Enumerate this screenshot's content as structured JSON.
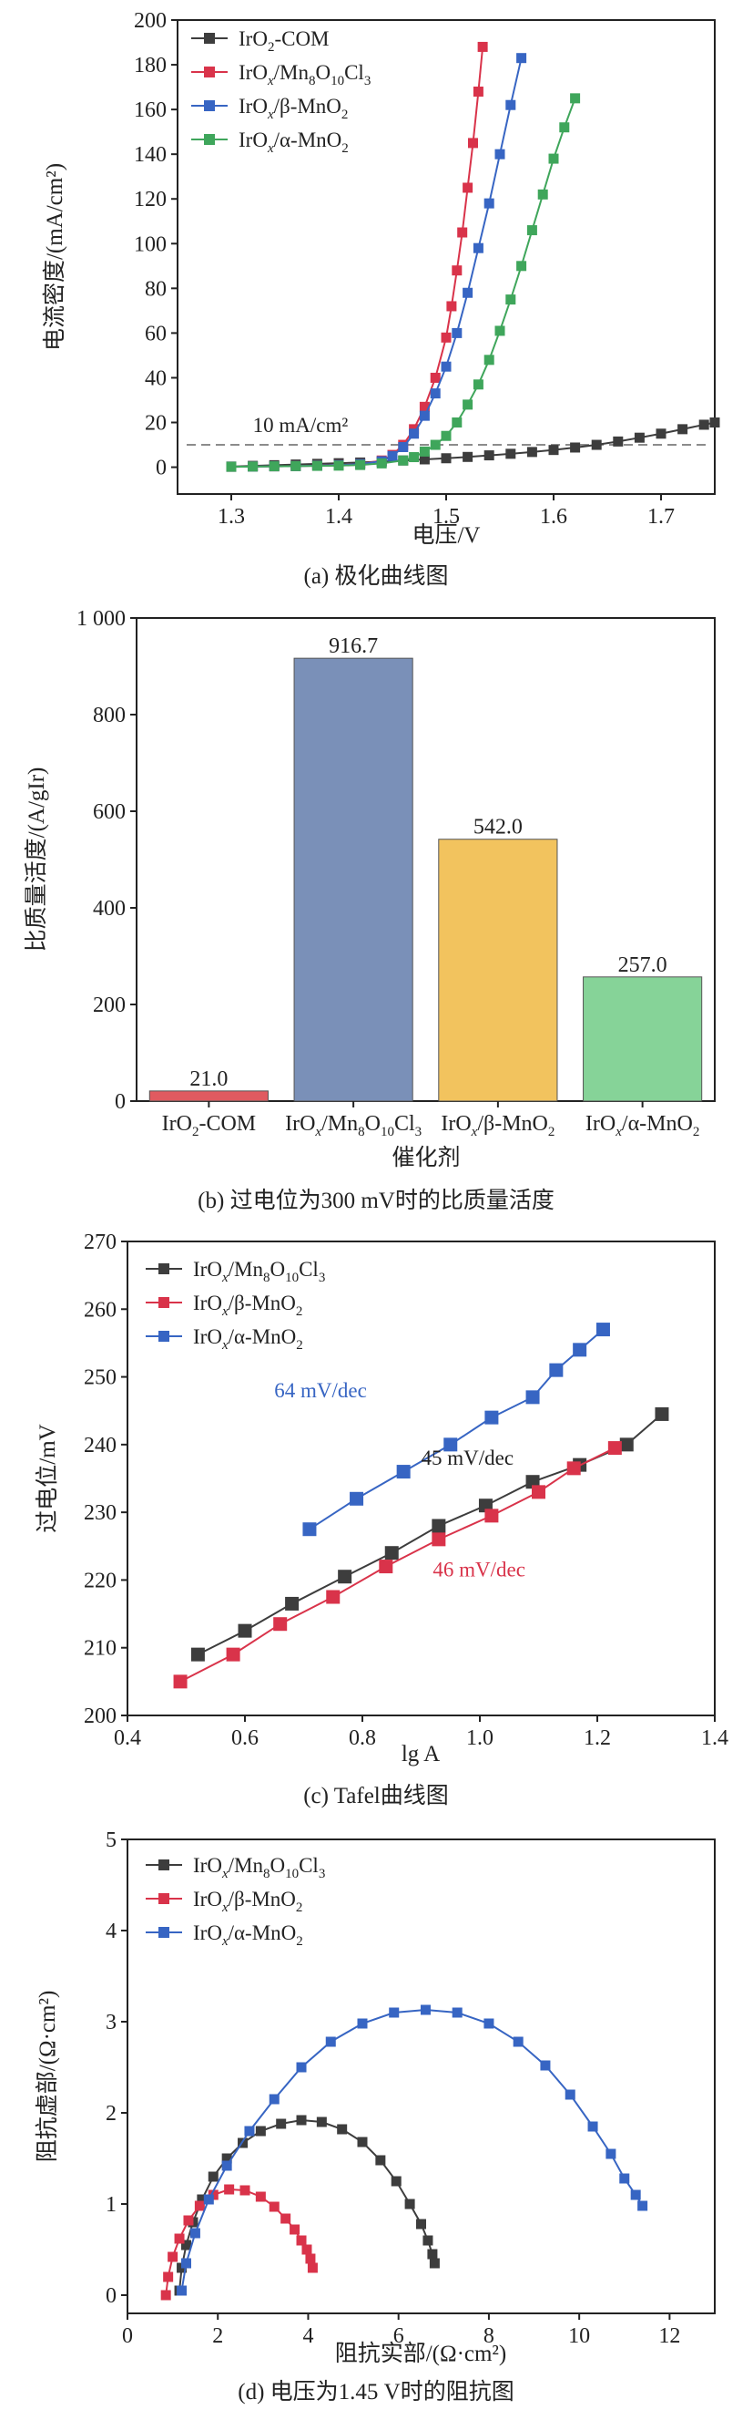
{
  "chart_data": [
    {
      "type": "line",
      "caption": "(a) 极化曲线图",
      "xlabel": "电压/V",
      "ylabel": "电流密度/(mA/cm²)",
      "xlim": [
        1.25,
        1.75
      ],
      "ylim": [
        -12,
        200
      ],
      "xticks": [
        "1.3",
        "1.4",
        "1.5",
        "1.6",
        "1.7"
      ],
      "yticks": [
        "0",
        "20",
        "40",
        "60",
        "80",
        "100",
        "120",
        "140",
        "160",
        "180",
        "200"
      ],
      "legend_position": "top-left",
      "reference_line": {
        "y": 10,
        "label": "10 mA/cm²"
      },
      "series": [
        {
          "name": "IrO₂-COM",
          "color": "#3d3d3d",
          "x": [
            1.3,
            1.32,
            1.34,
            1.36,
            1.38,
            1.4,
            1.42,
            1.44,
            1.46,
            1.48,
            1.5,
            1.52,
            1.54,
            1.56,
            1.58,
            1.6,
            1.62,
            1.64,
            1.66,
            1.68,
            1.7,
            1.72,
            1.74,
            1.75
          ],
          "y": [
            0.3,
            0.6,
            0.9,
            1.2,
            1.5,
            1.8,
            2.1,
            2.5,
            3,
            3.5,
            4,
            4.6,
            5.3,
            6,
            6.8,
            7.7,
            8.8,
            10,
            11.5,
            13.2,
            15,
            17,
            19,
            20
          ]
        },
        {
          "name": "IrOx/Mn8O10Cl3",
          "color": "#d9334a",
          "x": [
            1.3,
            1.32,
            1.34,
            1.36,
            1.38,
            1.4,
            1.42,
            1.44,
            1.45,
            1.46,
            1.47,
            1.48,
            1.49,
            1.5,
            1.505,
            1.51,
            1.515,
            1.52,
            1.525,
            1.53,
            1.534
          ],
          "y": [
            0.2,
            0.3,
            0.4,
            0.5,
            0.7,
            0.9,
            1.4,
            3,
            5.5,
            10,
            17,
            27,
            40,
            58,
            72,
            88,
            105,
            125,
            145,
            168,
            188
          ]
        },
        {
          "name": "IrOx/β-MnO2",
          "color": "#3765c3",
          "x": [
            1.3,
            1.32,
            1.34,
            1.36,
            1.38,
            1.4,
            1.42,
            1.44,
            1.45,
            1.46,
            1.47,
            1.48,
            1.49,
            1.5,
            1.51,
            1.52,
            1.53,
            1.54,
            1.55,
            1.56,
            1.57
          ],
          "y": [
            0.2,
            0.3,
            0.4,
            0.5,
            0.7,
            0.9,
            1.4,
            2.7,
            5,
            9,
            15,
            23,
            33,
            45,
            60,
            78,
            98,
            118,
            140,
            162,
            183
          ]
        },
        {
          "name": "IrOx/α-MnO2",
          "color": "#3fa65b",
          "x": [
            1.3,
            1.32,
            1.34,
            1.36,
            1.38,
            1.4,
            1.42,
            1.44,
            1.46,
            1.47,
            1.48,
            1.49,
            1.5,
            1.51,
            1.52,
            1.53,
            1.54,
            1.55,
            1.56,
            1.57,
            1.58,
            1.59,
            1.6,
            1.61,
            1.62
          ],
          "y": [
            0.2,
            0.3,
            0.4,
            0.5,
            0.6,
            0.7,
            1,
            1.7,
            3,
            4.5,
            7,
            10,
            14,
            20,
            28,
            37,
            48,
            61,
            75,
            90,
            106,
            122,
            138,
            152,
            165
          ]
        }
      ]
    },
    {
      "type": "bar",
      "caption": "(b) 过电位为300 mV时的比质量活度",
      "xlabel": "催化剂",
      "ylabel": "比质量活度/(A/gIr)",
      "ylim": [
        0,
        1000
      ],
      "yticks": [
        "0",
        "200",
        "400",
        "600",
        "800",
        "1 000"
      ],
      "categories": [
        "IrO₂-COM",
        "IrOx/Mn8O10Cl3",
        "IrOx/β-MnO2",
        "IrOx/α-MnO2"
      ],
      "values": [
        21.0,
        916.7,
        542.0,
        257.0
      ],
      "value_labels": [
        "21.0",
        "916.7",
        "542.0",
        "257.0"
      ],
      "colors": [
        "#e05a60",
        "#7a90b8",
        "#f2c35e",
        "#86d398"
      ]
    },
    {
      "type": "scatter",
      "caption": "(c) Tafel曲线图",
      "xlabel": "lg A",
      "ylabel": "过电位/mV",
      "xlim": [
        0.4,
        1.4
      ],
      "ylim": [
        200,
        270
      ],
      "xticks": [
        "0.4",
        "0.6",
        "0.8",
        "1.0",
        "1.2",
        "1.4"
      ],
      "yticks": [
        "200",
        "210",
        "220",
        "230",
        "240",
        "250",
        "260",
        "270"
      ],
      "legend_position": "top-left",
      "annotations": [
        {
          "text": "64 mV/dec",
          "color": "#3765c3"
        },
        {
          "text": "45 mV/dec",
          "color": "#222222"
        },
        {
          "text": "46 mV/dec",
          "color": "#d9334a"
        }
      ],
      "series": [
        {
          "name": "IrOx/Mn8O10Cl3",
          "color": "#3d3d3d",
          "x": [
            0.52,
            0.6,
            0.68,
            0.77,
            0.85,
            0.93,
            1.01,
            1.09,
            1.17,
            1.25,
            1.31
          ],
          "y": [
            209,
            212.5,
            216.5,
            220.5,
            224,
            228,
            231,
            234.5,
            237,
            240,
            244.5
          ]
        },
        {
          "name": "IrOx/β-MnO2",
          "color": "#d9334a",
          "x": [
            0.49,
            0.58,
            0.66,
            0.75,
            0.84,
            0.93,
            1.02,
            1.1,
            1.16,
            1.23
          ],
          "y": [
            205,
            209,
            213.5,
            217.5,
            222,
            226,
            229.5,
            233,
            236.5,
            239.5
          ]
        },
        {
          "name": "IrOx/α-MnO2",
          "color": "#3765c3",
          "x": [
            0.71,
            0.79,
            0.87,
            0.95,
            1.02,
            1.09,
            1.13,
            1.17,
            1.21
          ],
          "y": [
            227.5,
            232,
            236,
            240,
            244,
            247,
            251,
            254,
            257
          ]
        }
      ]
    },
    {
      "type": "line",
      "caption": "(d) 电压为1.45 V时的阻抗图",
      "xlabel": "阻抗实部/(Ω·cm²)",
      "ylabel": "阻抗虚部/(Ω·cm²)",
      "xlim": [
        0,
        13
      ],
      "ylim": [
        -0.2,
        5
      ],
      "xticks": [
        "0",
        "2",
        "4",
        "6",
        "8",
        "10",
        "12"
      ],
      "yticks": [
        "0",
        "1",
        "2",
        "3",
        "4",
        "5"
      ],
      "legend_position": "top-left",
      "series": [
        {
          "name": "IrOx/Mn8O10Cl3",
          "color": "#3d3d3d",
          "x": [
            1.15,
            1.2,
            1.3,
            1.45,
            1.65,
            1.9,
            2.2,
            2.55,
            2.95,
            3.4,
            3.85,
            4.3,
            4.75,
            5.2,
            5.6,
            5.95,
            6.25,
            6.5,
            6.65,
            6.75,
            6.8
          ],
          "y": [
            0.05,
            0.3,
            0.55,
            0.8,
            1.05,
            1.3,
            1.5,
            1.67,
            1.8,
            1.88,
            1.92,
            1.9,
            1.82,
            1.68,
            1.48,
            1.25,
            1.0,
            0.78,
            0.6,
            0.45,
            0.35
          ]
        },
        {
          "name": "IrOx/β-MnO2",
          "color": "#d9334a",
          "x": [
            0.85,
            0.9,
            1.0,
            1.15,
            1.35,
            1.6,
            1.9,
            2.25,
            2.6,
            2.95,
            3.25,
            3.5,
            3.7,
            3.85,
            3.97,
            4.05,
            4.1
          ],
          "y": [
            0.0,
            0.2,
            0.42,
            0.62,
            0.82,
            0.98,
            1.1,
            1.16,
            1.15,
            1.08,
            0.97,
            0.84,
            0.72,
            0.6,
            0.5,
            0.4,
            0.3
          ]
        },
        {
          "name": "IrOx/α-MnO2",
          "color": "#3765c3",
          "x": [
            1.2,
            1.3,
            1.5,
            1.8,
            2.2,
            2.7,
            3.25,
            3.85,
            4.5,
            5.2,
            5.9,
            6.6,
            7.3,
            8.0,
            8.65,
            9.25,
            9.8,
            10.3,
            10.7,
            11.0,
            11.25,
            11.4
          ],
          "y": [
            0.05,
            0.35,
            0.68,
            1.05,
            1.42,
            1.8,
            2.15,
            2.5,
            2.78,
            2.98,
            3.1,
            3.13,
            3.1,
            2.98,
            2.78,
            2.52,
            2.2,
            1.85,
            1.55,
            1.28,
            1.1,
            0.98
          ]
        }
      ]
    }
  ]
}
